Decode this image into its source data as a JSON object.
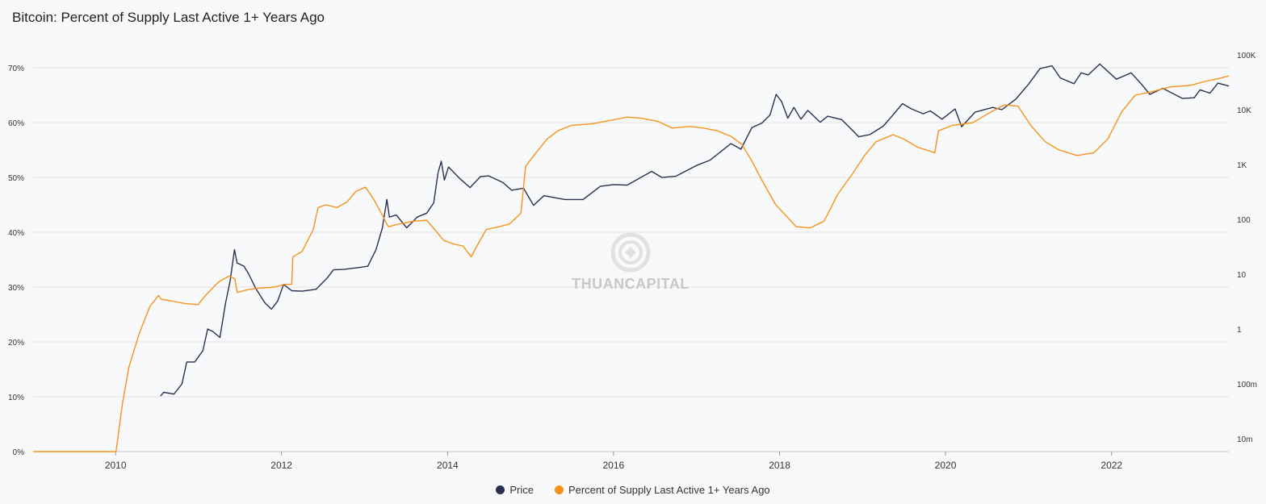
{
  "chart_data": {
    "type": "line",
    "title": "Bitcoin: Percent of Supply Last Active 1+ Years Ago",
    "watermark": "THUANCAPITAL",
    "grid": "horizontal",
    "legend_position": "bottom-center",
    "x_axis": {
      "type": "date",
      "range": [
        "2009-01-03",
        "2023-06-01"
      ],
      "ticks": [
        "2010",
        "2012",
        "2014",
        "2016",
        "2018",
        "2020",
        "2022"
      ]
    },
    "y_left": {
      "unit": "%",
      "range": [
        0,
        70
      ],
      "ticks": [
        "0%",
        "10%",
        "20%",
        "30%",
        "40%",
        "50%",
        "60%",
        "70%"
      ]
    },
    "y_right": {
      "scale": "log",
      "range": [
        0.01,
        100000
      ],
      "ticks": [
        "10m",
        "100m",
        "1",
        "10",
        "100",
        "1K",
        "10K",
        "100K"
      ]
    },
    "series": [
      {
        "name": "Price",
        "color": "#2a3150",
        "axis": "right",
        "points": [
          [
            "2010-07-18",
            0.06
          ],
          [
            "2010-08-01",
            0.07
          ],
          [
            "2010-09-15",
            0.065
          ],
          [
            "2010-10-20",
            0.1
          ],
          [
            "2010-11-10",
            0.25
          ],
          [
            "2010-12-15",
            0.25
          ],
          [
            "2011-01-20",
            0.4
          ],
          [
            "2011-02-10",
            1.0
          ],
          [
            "2011-03-05",
            0.9
          ],
          [
            "2011-04-05",
            0.7
          ],
          [
            "2011-04-30",
            3.0
          ],
          [
            "2011-05-20",
            7.5
          ],
          [
            "2011-06-08",
            28
          ],
          [
            "2011-06-20",
            16
          ],
          [
            "2011-07-20",
            14
          ],
          [
            "2011-08-10",
            10
          ],
          [
            "2011-09-10",
            5.5
          ],
          [
            "2011-10-20",
            3.0
          ],
          [
            "2011-11-18",
            2.3
          ],
          [
            "2011-12-15",
            3.2
          ],
          [
            "2012-01-10",
            6.5
          ],
          [
            "2012-02-15",
            5.0
          ],
          [
            "2012-04-01",
            4.9
          ],
          [
            "2012-06-01",
            5.3
          ],
          [
            "2012-07-20",
            8.5
          ],
          [
            "2012-08-17",
            12
          ],
          [
            "2012-10-01",
            12.2
          ],
          [
            "2012-12-15",
            13.4
          ],
          [
            "2013-01-15",
            14
          ],
          [
            "2013-02-20",
            28
          ],
          [
            "2013-03-20",
            70
          ],
          [
            "2013-04-09",
            230
          ],
          [
            "2013-04-20",
            110
          ],
          [
            "2013-05-20",
            120
          ],
          [
            "2013-07-05",
            70
          ],
          [
            "2013-08-20",
            110
          ],
          [
            "2013-10-01",
            130
          ],
          [
            "2013-11-01",
            200
          ],
          [
            "2013-11-20",
            700
          ],
          [
            "2013-12-04",
            1150
          ],
          [
            "2013-12-18",
            520
          ],
          [
            "2014-01-05",
            900
          ],
          [
            "2014-02-25",
            550
          ],
          [
            "2014-04-10",
            380
          ],
          [
            "2014-05-25",
            600
          ],
          [
            "2014-07-01",
            620
          ],
          [
            "2014-09-01",
            470
          ],
          [
            "2014-10-10",
            340
          ],
          [
            "2014-12-01",
            370
          ],
          [
            "2015-01-14",
            180
          ],
          [
            "2015-03-01",
            270
          ],
          [
            "2015-06-01",
            230
          ],
          [
            "2015-08-20",
            230
          ],
          [
            "2015-11-04",
            400
          ],
          [
            "2016-01-01",
            430
          ],
          [
            "2016-03-01",
            420
          ],
          [
            "2016-06-17",
            750
          ],
          [
            "2016-08-01",
            580
          ],
          [
            "2016-10-01",
            610
          ],
          [
            "2016-12-31",
            960
          ],
          [
            "2017-03-01",
            1200
          ],
          [
            "2017-06-01",
            2400
          ],
          [
            "2017-07-15",
            1900
          ],
          [
            "2017-09-01",
            4700
          ],
          [
            "2017-10-15",
            5700
          ],
          [
            "2017-11-20",
            8000
          ],
          [
            "2017-12-17",
            19000
          ],
          [
            "2018-01-10",
            14000
          ],
          [
            "2018-02-06",
            7000
          ],
          [
            "2018-03-05",
            11000
          ],
          [
            "2018-04-05",
            6700
          ],
          [
            "2018-05-05",
            9700
          ],
          [
            "2018-06-29",
            5900
          ],
          [
            "2018-08-01",
            7600
          ],
          [
            "2018-10-01",
            6600
          ],
          [
            "2018-11-25",
            3900
          ],
          [
            "2018-12-15",
            3200
          ],
          [
            "2019-02-01",
            3500
          ],
          [
            "2019-04-02",
            5000
          ],
          [
            "2019-05-15",
            8000
          ],
          [
            "2019-06-26",
            12900
          ],
          [
            "2019-08-01",
            10500
          ],
          [
            "2019-09-25",
            8400
          ],
          [
            "2019-10-26",
            9500
          ],
          [
            "2019-12-17",
            6700
          ],
          [
            "2020-02-12",
            10300
          ],
          [
            "2020-03-12",
            4900
          ],
          [
            "2020-05-10",
            9000
          ],
          [
            "2020-07-27",
            11000
          ],
          [
            "2020-09-05",
            10000
          ],
          [
            "2020-11-05",
            15500
          ],
          [
            "2020-12-31",
            29000
          ],
          [
            "2021-02-20",
            56000
          ],
          [
            "2021-04-14",
            63000
          ],
          [
            "2021-05-20",
            38000
          ],
          [
            "2021-07-20",
            29800
          ],
          [
            "2021-08-20",
            47000
          ],
          [
            "2021-09-20",
            43000
          ],
          [
            "2021-11-10",
            68000
          ],
          [
            "2022-01-22",
            36000
          ],
          [
            "2022-03-28",
            47000
          ],
          [
            "2022-05-10",
            30000
          ],
          [
            "2022-06-18",
            19000
          ],
          [
            "2022-08-14",
            24500
          ],
          [
            "2022-11-09",
            16000
          ],
          [
            "2022-12-31",
            16500
          ],
          [
            "2023-01-25",
            23000
          ],
          [
            "2023-03-10",
            20000
          ],
          [
            "2023-04-14",
            30500
          ],
          [
            "2023-06-01",
            27000
          ]
        ]
      },
      {
        "name": "Percent of Supply Last Active 1+ Years Ago",
        "color": "#f7931a",
        "axis": "left",
        "points": [
          [
            "2009-01-03",
            0
          ],
          [
            "2010-01-03",
            0
          ],
          [
            "2010-02-01",
            9
          ],
          [
            "2010-03-01",
            15.5
          ],
          [
            "2010-04-15",
            21.5
          ],
          [
            "2010-06-01",
            26.5
          ],
          [
            "2010-07-10",
            28.5
          ],
          [
            "2010-07-20",
            27.8
          ],
          [
            "2010-09-01",
            27.5
          ],
          [
            "2010-11-01",
            27
          ],
          [
            "2010-12-30",
            26.8
          ],
          [
            "2011-02-01",
            28.5
          ],
          [
            "2011-04-01",
            31
          ],
          [
            "2011-05-15",
            32
          ],
          [
            "2011-06-10",
            31.5
          ],
          [
            "2011-06-20",
            29
          ],
          [
            "2011-08-01",
            29.5
          ],
          [
            "2011-09-20",
            29.8
          ],
          [
            "2011-12-01",
            30
          ],
          [
            "2012-01-15",
            30.5
          ],
          [
            "2012-02-15",
            30.5
          ],
          [
            "2012-02-20",
            35.5
          ],
          [
            "2012-04-01",
            36.5
          ],
          [
            "2012-05-20",
            40.5
          ],
          [
            "2012-06-10",
            44.5
          ],
          [
            "2012-07-15",
            45
          ],
          [
            "2012-09-01",
            44.5
          ],
          [
            "2012-10-15",
            45.5
          ],
          [
            "2012-11-25",
            47.5
          ],
          [
            "2013-01-05",
            48.2
          ],
          [
            "2013-02-10",
            46
          ],
          [
            "2013-03-15",
            43.5
          ],
          [
            "2013-04-15",
            41
          ],
          [
            "2013-06-01",
            41.5
          ],
          [
            "2013-08-01",
            42
          ],
          [
            "2013-10-01",
            42.2
          ],
          [
            "2013-11-15",
            40
          ],
          [
            "2013-12-15",
            38.5
          ],
          [
            "2014-02-01",
            37.8
          ],
          [
            "2014-03-10",
            37.5
          ],
          [
            "2014-04-15",
            35.5
          ],
          [
            "2014-05-10",
            37.5
          ],
          [
            "2014-06-20",
            40.5
          ],
          [
            "2014-08-15",
            41
          ],
          [
            "2014-10-01",
            41.5
          ],
          [
            "2014-11-20",
            43.5
          ],
          [
            "2014-12-10",
            52
          ],
          [
            "2015-01-25",
            54.5
          ],
          [
            "2015-03-15",
            57
          ],
          [
            "2015-05-01",
            58.5
          ],
          [
            "2015-07-01",
            59.5
          ],
          [
            "2015-10-01",
            59.8
          ],
          [
            "2016-01-01",
            60.5
          ],
          [
            "2016-03-01",
            61
          ],
          [
            "2016-05-01",
            60.8
          ],
          [
            "2016-07-15",
            60.2
          ],
          [
            "2016-09-15",
            59
          ],
          [
            "2016-12-01",
            59.3
          ],
          [
            "2017-02-01",
            59
          ],
          [
            "2017-04-01",
            58.5
          ],
          [
            "2017-06-01",
            57.5
          ],
          [
            "2017-07-20",
            56
          ],
          [
            "2017-09-01",
            53
          ],
          [
            "2017-10-15",
            49.5
          ],
          [
            "2017-12-15",
            45
          ],
          [
            "2018-02-10",
            42.5
          ],
          [
            "2018-03-15",
            41
          ],
          [
            "2018-05-15",
            40.8
          ],
          [
            "2018-07-15",
            42
          ],
          [
            "2018-09-15",
            47
          ],
          [
            "2018-11-15",
            50.5
          ],
          [
            "2019-01-10",
            54
          ],
          [
            "2019-03-01",
            56.5
          ],
          [
            "2019-05-15",
            57.8
          ],
          [
            "2019-07-01",
            57
          ],
          [
            "2019-09-01",
            55.5
          ],
          [
            "2019-11-15",
            54.5
          ],
          [
            "2019-12-01",
            58.5
          ],
          [
            "2020-02-01",
            59.5
          ],
          [
            "2020-05-01",
            60
          ],
          [
            "2020-07-01",
            61.5
          ],
          [
            "2020-09-15",
            63.2
          ],
          [
            "2020-11-15",
            63
          ],
          [
            "2021-01-10",
            59.5
          ],
          [
            "2021-03-15",
            56.5
          ],
          [
            "2021-05-15",
            55
          ],
          [
            "2021-08-01",
            54
          ],
          [
            "2021-10-15",
            54.5
          ],
          [
            "2021-12-15",
            57
          ],
          [
            "2022-02-15",
            62
          ],
          [
            "2022-04-15",
            65
          ],
          [
            "2022-06-15",
            65.5
          ],
          [
            "2022-09-15",
            66.5
          ],
          [
            "2022-12-15",
            66.8
          ],
          [
            "2023-02-15",
            67.5
          ],
          [
            "2023-04-15",
            68
          ],
          [
            "2023-06-01",
            68.5
          ]
        ]
      }
    ]
  }
}
